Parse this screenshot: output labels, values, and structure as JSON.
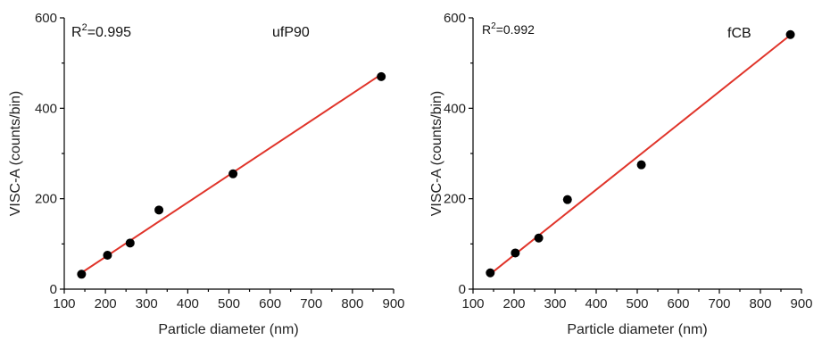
{
  "chart_data": [
    {
      "type": "scatter",
      "xlabel": "Particle diameter (nm)",
      "ylabel": "VISC-A (counts/bin)",
      "xlim": [
        100,
        900
      ],
      "ylim": [
        0,
        600
      ],
      "xticks": [
        "100",
        "200",
        "300",
        "400",
        "500",
        "600",
        "700",
        "800",
        "900"
      ],
      "yticks": [
        "0",
        "200",
        "400",
        "600"
      ],
      "r2_prefix": "R",
      "r2_sup": "2",
      "r2_value": "=0.995",
      "label": "ufP90",
      "points": [
        {
          "x": 142,
          "y": 33
        },
        {
          "x": 205,
          "y": 75
        },
        {
          "x": 260,
          "y": 102
        },
        {
          "x": 330,
          "y": 175
        },
        {
          "x": 510,
          "y": 255
        },
        {
          "x": 870,
          "y": 470
        }
      ],
      "fit": {
        "x": [
          140,
          870
        ],
        "y": [
          35,
          475
        ]
      },
      "point_color": "#000000",
      "fit_color": "#e0342a"
    },
    {
      "type": "scatter",
      "xlabel": "Particle diameter (nm)",
      "ylabel": "VISC-A (counts/bin)",
      "xlim": [
        100,
        900
      ],
      "ylim": [
        0,
        600
      ],
      "xticks": [
        "100",
        "200",
        "300",
        "400",
        "500",
        "600",
        "700",
        "800",
        "900"
      ],
      "yticks": [
        "0",
        "200",
        "400",
        "600"
      ],
      "r2_prefix": "R",
      "r2_sup": "2",
      "r2_value": "=0.992",
      "label": "fCB",
      "points": [
        {
          "x": 142,
          "y": 36
        },
        {
          "x": 203,
          "y": 80
        },
        {
          "x": 260,
          "y": 113
        },
        {
          "x": 330,
          "y": 198
        },
        {
          "x": 510,
          "y": 275
        },
        {
          "x": 873,
          "y": 563
        }
      ],
      "fit": {
        "x": [
          140,
          873
        ],
        "y": [
          32,
          562
        ]
      },
      "point_color": "#000000",
      "fit_color": "#e0342a"
    }
  ]
}
